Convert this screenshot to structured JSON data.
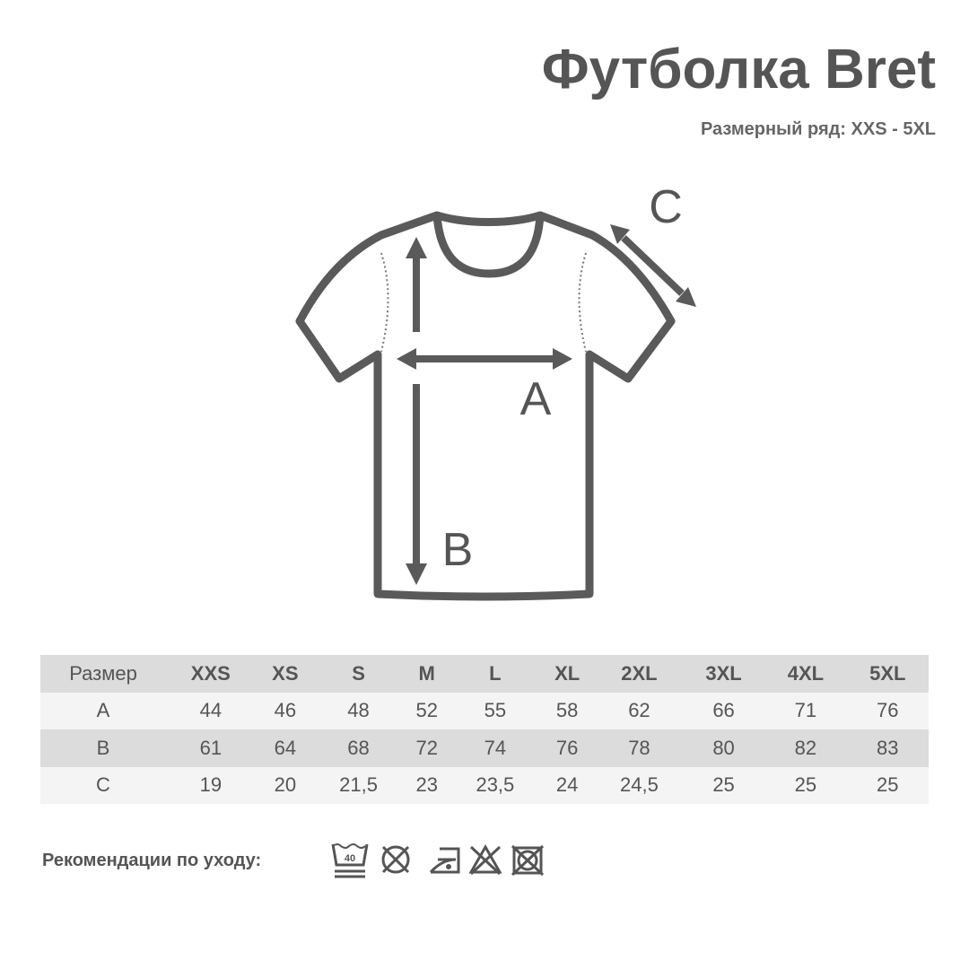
{
  "header": {
    "title": "Футболка Bret",
    "subtitle": "Размерный ряд: XXS - 5XL"
  },
  "diagram": {
    "labels": {
      "a": "A",
      "b": "B",
      "c": "C"
    }
  },
  "size_table": {
    "columns": [
      "Размер",
      "XXS",
      "XS",
      "S",
      "M",
      "L",
      "XL",
      "2XL",
      "3XL",
      "4XL",
      "5XL"
    ],
    "rows": [
      [
        "A",
        "44",
        "46",
        "48",
        "52",
        "55",
        "58",
        "62",
        "66",
        "71",
        "76"
      ],
      [
        "B",
        "61",
        "64",
        "68",
        "72",
        "74",
        "76",
        "78",
        "80",
        "82",
        "83"
      ],
      [
        "C",
        "19",
        "20",
        "21,5",
        "23",
        "23,5",
        "24",
        "24,5",
        "25",
        "25",
        "25"
      ]
    ]
  },
  "care": {
    "label": "Рекомендации по уходу:",
    "wash_temp": "40",
    "icons": [
      "wash-40-icon",
      "no-tumble-dry-icon",
      "iron-low-icon",
      "no-bleach-icon",
      "no-dry-clean-icon"
    ]
  },
  "colors": {
    "text": "#555555",
    "row_dark": "#dcdcdc",
    "row_light": "#f4f4f4",
    "outline": "#5a5a5a"
  }
}
